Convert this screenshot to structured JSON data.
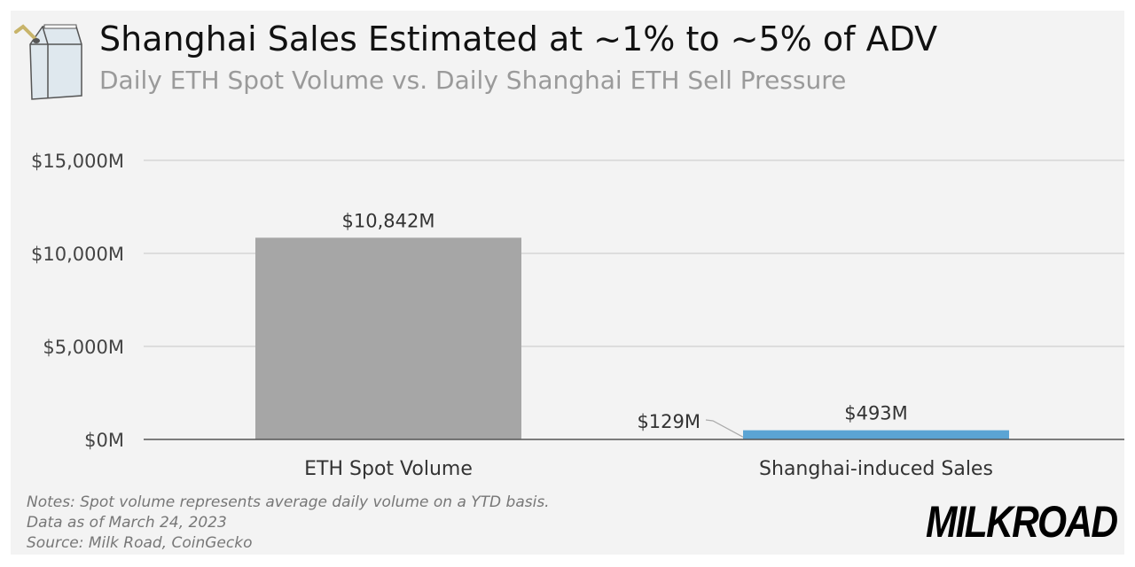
{
  "header": {
    "title": "Shanghai Sales Estimated at ~1% to ~5% of ADV",
    "subtitle": "Daily ETH Spot Volume vs. Daily Shanghai ETH Sell Pressure"
  },
  "chart_data": {
    "type": "bar",
    "categories": [
      "ETH Spot Volume",
      "Shanghai-induced Sales"
    ],
    "values": [
      10842,
      493
    ],
    "low_annotation": {
      "category": "Shanghai-induced Sales",
      "value": 129,
      "label": "$129M"
    },
    "data_labels": [
      "$10,842M",
      "$493M"
    ],
    "colors": [
      "#a6a6a6",
      "#5ba4d4"
    ],
    "ylim": [
      0,
      15000
    ],
    "yticks": [
      0,
      5000,
      10000,
      15000
    ],
    "ytick_labels": [
      "$0M",
      "$5,000M",
      "$10,000M",
      "$15,000M"
    ],
    "grid": true,
    "title": "",
    "xlabel": "",
    "ylabel": ""
  },
  "footer": {
    "notes": [
      "Notes: Spot volume represents average daily volume on a YTD basis.",
      "Data as of March 24, 2023",
      "Source: Milk Road, CoinGecko"
    ],
    "brand": "MILKROAD"
  },
  "icons": {
    "logo": "milk-carton-icon"
  }
}
